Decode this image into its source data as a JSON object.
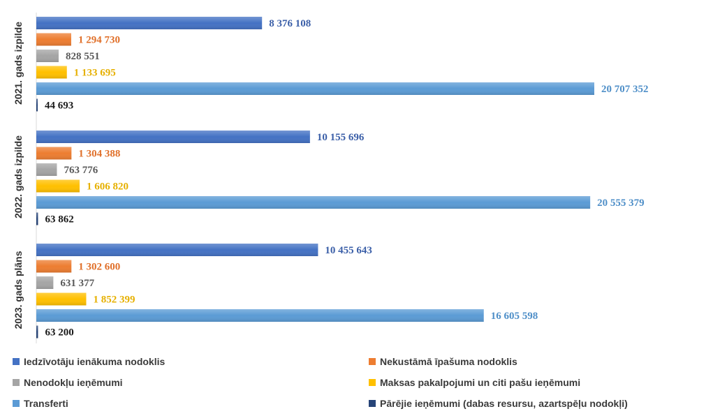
{
  "chart_data": {
    "type": "bar",
    "orientation": "horizontal",
    "legend_position": "bottom",
    "grid": false,
    "categories": [
      "2021. gads izpilde",
      "2022. gads izpilde",
      "2023. gads plāns"
    ],
    "series": [
      {
        "name": "Iedzīvotāju ienākuma nodoklis",
        "color": "#4472C4",
        "values": [
          8376108,
          10155696,
          10455643
        ],
        "labels": [
          "8 376 108",
          "10 155 696",
          "10 455 643"
        ]
      },
      {
        "name": "Nekustāmā īpašuma nodoklis",
        "color": "#ED7D31",
        "values": [
          1294730,
          1304388,
          1302600
        ],
        "labels": [
          "1 294 730",
          "1 304 388",
          "1 302 600"
        ]
      },
      {
        "name": "Nenodokļu ieņēmumi",
        "color": "#A5A5A5",
        "values": [
          828551,
          763776,
          631377
        ],
        "labels": [
          "828 551",
          "763 776",
          "631 377"
        ]
      },
      {
        "name": "Maksas pakalpojumi un citi pašu ieņēmumi",
        "color": "#FFC000",
        "values": [
          1133695,
          1606820,
          1852399
        ],
        "labels": [
          "1 133 695",
          "1 606 820",
          "1 852 399"
        ]
      },
      {
        "name": "Transferti",
        "color": "#5B9BD5",
        "values": [
          20707352,
          20555379,
          16605598
        ],
        "labels": [
          "20 707 352",
          "20 555 379",
          "16 605 598"
        ]
      },
      {
        "name": "Pārējie ieņēmumi (dabas resursu, azartspēļu nodokļi)",
        "color": "#264478",
        "values": [
          44693,
          63862,
          63200
        ],
        "labels": [
          "44 693",
          "63 862",
          "63 200"
        ]
      }
    ],
    "label_colors": [
      "#3B5FA8",
      "#E0702A",
      "#5a5a5a",
      "#E6B000",
      "#4F8FC8",
      "#1a1a1a"
    ]
  }
}
